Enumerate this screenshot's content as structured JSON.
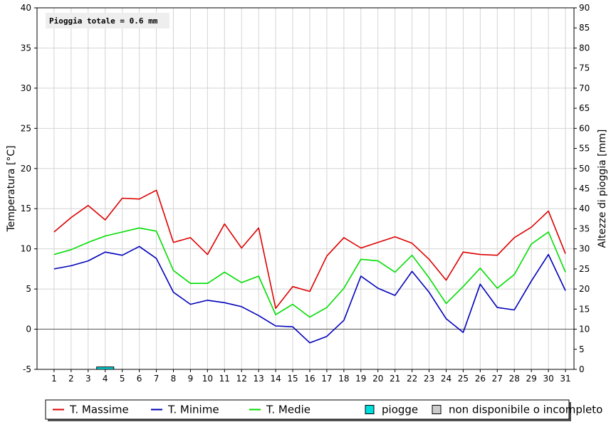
{
  "chart_data": {
    "type": "line",
    "x": [
      1,
      2,
      3,
      4,
      5,
      6,
      7,
      8,
      9,
      10,
      11,
      12,
      13,
      14,
      15,
      16,
      17,
      18,
      19,
      20,
      21,
      22,
      23,
      24,
      25,
      26,
      27,
      28,
      29,
      30,
      31
    ],
    "x_tick_labels": [
      "1",
      "2",
      "3",
      "4",
      "5",
      "6",
      "7",
      "8",
      "9",
      "10",
      "11",
      "12",
      "13",
      "14",
      "15",
      "16",
      "17",
      "18",
      "19",
      "20",
      "21",
      "22",
      "23",
      "24",
      "25",
      "26",
      "27",
      "28",
      "29",
      "30",
      "31"
    ],
    "ylabel": "Temperatura [°C]",
    "ylim": [
      -5,
      40
    ],
    "y_ticks": [
      -5,
      0,
      5,
      10,
      15,
      20,
      25,
      30,
      35,
      40
    ],
    "y_tick_labels": [
      "-5",
      "0",
      "5",
      "10",
      "15",
      "20",
      "25",
      "30",
      "35",
      "40"
    ],
    "y2label": "Altezze di pioggia [mm]",
    "y2lim": [
      0,
      90
    ],
    "y2_ticks": [
      0,
      5,
      10,
      15,
      20,
      25,
      30,
      35,
      40,
      45,
      50,
      55,
      60,
      65,
      70,
      75,
      80,
      85,
      90
    ],
    "y2_tick_labels": [
      "0",
      "5",
      "10",
      "15",
      "20",
      "25",
      "30",
      "35",
      "40",
      "45",
      "50",
      "55",
      "60",
      "65",
      "70",
      "75",
      "80",
      "85",
      "90"
    ],
    "grid": true,
    "annotation": "Pioggia totale = 0.6 mm",
    "series": [
      {
        "name": "T. Massime",
        "color": "#dd0000",
        "values": [
          12.1,
          13.9,
          15.4,
          13.6,
          16.3,
          16.2,
          17.3,
          10.8,
          11.4,
          9.3,
          13.1,
          10.1,
          12.6,
          2.6,
          5.3,
          4.7,
          9.1,
          11.4,
          10.1,
          10.8,
          11.5,
          10.7,
          8.7,
          6.1,
          9.6,
          9.3,
          9.2,
          11.4,
          12.7,
          14.7,
          9.4
        ]
      },
      {
        "name": "T. Minime",
        "color": "#0000bb",
        "values": [
          7.5,
          7.9,
          8.5,
          9.6,
          9.2,
          10.3,
          8.8,
          4.6,
          3.1,
          3.6,
          3.3,
          2.8,
          1.7,
          0.4,
          0.3,
          -1.7,
          -0.9,
          1.1,
          6.6,
          5.1,
          4.2,
          7.2,
          4.6,
          1.3,
          -0.4,
          5.6,
          2.7,
          2.4,
          6.0,
          9.3,
          4.8
        ]
      },
      {
        "name": "T. Medie",
        "color": "#00dd00",
        "values": [
          9.3,
          9.9,
          10.8,
          11.6,
          12.1,
          12.6,
          12.2,
          7.3,
          5.7,
          5.7,
          7.1,
          5.8,
          6.6,
          1.8,
          3.1,
          1.5,
          2.7,
          5.1,
          8.7,
          8.5,
          7.1,
          9.2,
          6.4,
          3.2,
          5.3,
          7.6,
          5.1,
          6.8,
          10.6,
          12.1,
          7.1
        ]
      }
    ],
    "rain": {
      "name": "piogge",
      "color": "#00dddd",
      "x": [
        4
      ],
      "values": [
        0.6
      ]
    },
    "legend": {
      "placement": "bottom-center",
      "items": [
        {
          "label": "T. Massime",
          "color": "#dd0000",
          "kind": "line"
        },
        {
          "label": "T. Minime",
          "color": "#0000bb",
          "kind": "line"
        },
        {
          "label": "T. Medie",
          "color": "#00dd00",
          "kind": "line"
        },
        {
          "label": "piogge",
          "color": "#00dddd",
          "kind": "box"
        },
        {
          "label": "non disponibile o incompleto",
          "color": "#cccccc",
          "kind": "box"
        }
      ]
    }
  }
}
